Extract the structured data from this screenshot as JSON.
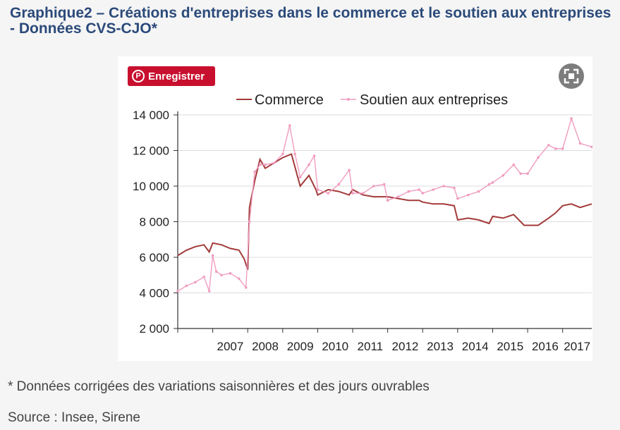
{
  "page": {
    "title": "Graphique2 – Créations d'entreprises dans le commerce et le soutien aux entreprises - Données CVS-CJO*",
    "footnote": "* Données corrigées des variations saisonnières et des jours ouvrables",
    "source": "Source : Insee, Sirene"
  },
  "buttons": {
    "pin_label": "Enregistrer",
    "pin_icon": "pinterest-icon",
    "expand_icon": "fullscreen-expand-icon"
  },
  "chart_data": {
    "type": "line",
    "title": "",
    "xlabel": "",
    "ylabel": "",
    "ylim": [
      2000,
      14000
    ],
    "yticks": [
      2000,
      4000,
      6000,
      8000,
      10000,
      12000,
      14000
    ],
    "ytick_labels": [
      "2 000",
      "4 000",
      "6 000",
      "8 000",
      "10 000",
      "12 000",
      "14 000"
    ],
    "xlim": [
      2006.0,
      2017.833
    ],
    "xtick_labels": [
      "2007",
      "2008",
      "2009",
      "2010",
      "2011",
      "2012",
      "2013",
      "2014",
      "2015",
      "2016",
      "2017"
    ],
    "legend_position": "top",
    "grid": "horizontal",
    "series": [
      {
        "name": "Commerce",
        "color": "#a33a3a",
        "style": "line",
        "points": [
          [
            2006.0,
            6100
          ],
          [
            2006.25,
            6400
          ],
          [
            2006.5,
            6600
          ],
          [
            2006.75,
            6700
          ],
          [
            2006.9,
            6300
          ],
          [
            2007.0,
            6800
          ],
          [
            2007.25,
            6700
          ],
          [
            2007.5,
            6500
          ],
          [
            2007.75,
            6400
          ],
          [
            2007.9,
            5900
          ],
          [
            2008.0,
            5300
          ],
          [
            2008.05,
            8800
          ],
          [
            2008.2,
            10300
          ],
          [
            2008.35,
            11500
          ],
          [
            2008.5,
            11000
          ],
          [
            2008.75,
            11300
          ],
          [
            2009.0,
            11600
          ],
          [
            2009.25,
            11800
          ],
          [
            2009.5,
            10000
          ],
          [
            2009.75,
            10600
          ],
          [
            2009.95,
            9800
          ],
          [
            2010.0,
            9500
          ],
          [
            2010.3,
            9800
          ],
          [
            2010.6,
            9700
          ],
          [
            2010.9,
            9500
          ],
          [
            2011.0,
            9800
          ],
          [
            2011.3,
            9500
          ],
          [
            2011.6,
            9400
          ],
          [
            2011.9,
            9400
          ],
          [
            2012.0,
            9400
          ],
          [
            2012.3,
            9300
          ],
          [
            2012.6,
            9200
          ],
          [
            2012.9,
            9200
          ],
          [
            2013.0,
            9100
          ],
          [
            2013.3,
            9000
          ],
          [
            2013.6,
            9000
          ],
          [
            2013.9,
            8900
          ],
          [
            2014.0,
            8100
          ],
          [
            2014.3,
            8200
          ],
          [
            2014.6,
            8100
          ],
          [
            2014.9,
            7900
          ],
          [
            2015.0,
            8300
          ],
          [
            2015.3,
            8200
          ],
          [
            2015.6,
            8400
          ],
          [
            2015.9,
            7800
          ],
          [
            2016.0,
            7800
          ],
          [
            2016.3,
            7800
          ],
          [
            2016.6,
            8200
          ],
          [
            2016.8,
            8500
          ],
          [
            2017.0,
            8900
          ],
          [
            2017.25,
            9000
          ],
          [
            2017.5,
            8800
          ],
          [
            2017.833,
            9000
          ]
        ]
      },
      {
        "name": "Soutien aux entreprises",
        "color": "#f09dc0",
        "style": "line-with-markers",
        "points": [
          [
            2006.0,
            4100
          ],
          [
            2006.25,
            4400
          ],
          [
            2006.5,
            4600
          ],
          [
            2006.75,
            4900
          ],
          [
            2006.9,
            4100
          ],
          [
            2007.0,
            6100
          ],
          [
            2007.1,
            5200
          ],
          [
            2007.25,
            5000
          ],
          [
            2007.5,
            5100
          ],
          [
            2007.75,
            4800
          ],
          [
            2007.95,
            4300
          ],
          [
            2008.05,
            8000
          ],
          [
            2008.2,
            10800
          ],
          [
            2008.35,
            11200
          ],
          [
            2008.5,
            11200
          ],
          [
            2008.75,
            11300
          ],
          [
            2009.0,
            11800
          ],
          [
            2009.2,
            13400
          ],
          [
            2009.35,
            11800
          ],
          [
            2009.5,
            10500
          ],
          [
            2009.75,
            11200
          ],
          [
            2009.9,
            11700
          ],
          [
            2010.0,
            9800
          ],
          [
            2010.3,
            9600
          ],
          [
            2010.6,
            10100
          ],
          [
            2010.9,
            10900
          ],
          [
            2011.0,
            9600
          ],
          [
            2011.3,
            9600
          ],
          [
            2011.6,
            10000
          ],
          [
            2011.9,
            10100
          ],
          [
            2012.0,
            9200
          ],
          [
            2012.3,
            9400
          ],
          [
            2012.6,
            9700
          ],
          [
            2012.9,
            9800
          ],
          [
            2013.0,
            9600
          ],
          [
            2013.3,
            9800
          ],
          [
            2013.6,
            10000
          ],
          [
            2013.9,
            9900
          ],
          [
            2014.0,
            9300
          ],
          [
            2014.3,
            9500
          ],
          [
            2014.6,
            9700
          ],
          [
            2014.9,
            10100
          ],
          [
            2015.0,
            10200
          ],
          [
            2015.3,
            10600
          ],
          [
            2015.6,
            11200
          ],
          [
            2015.8,
            10700
          ],
          [
            2016.0,
            10700
          ],
          [
            2016.3,
            11600
          ],
          [
            2016.6,
            12300
          ],
          [
            2016.8,
            12100
          ],
          [
            2017.0,
            12100
          ],
          [
            2017.25,
            13800
          ],
          [
            2017.5,
            12400
          ],
          [
            2017.833,
            12200
          ]
        ]
      }
    ]
  }
}
